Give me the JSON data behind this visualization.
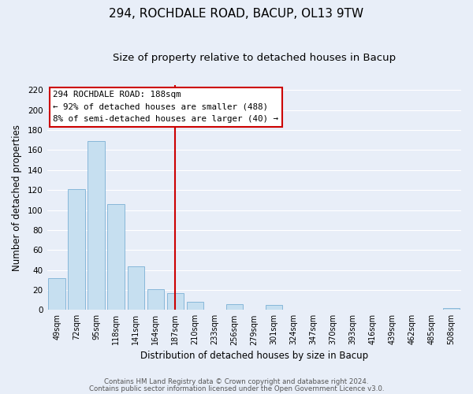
{
  "title": "294, ROCHDALE ROAD, BACUP, OL13 9TW",
  "subtitle": "Size of property relative to detached houses in Bacup",
  "xlabel": "Distribution of detached houses by size in Bacup",
  "ylabel": "Number of detached properties",
  "bar_labels": [
    "49sqm",
    "72sqm",
    "95sqm",
    "118sqm",
    "141sqm",
    "164sqm",
    "187sqm",
    "210sqm",
    "233sqm",
    "256sqm",
    "279sqm",
    "301sqm",
    "324sqm",
    "347sqm",
    "370sqm",
    "393sqm",
    "416sqm",
    "439sqm",
    "462sqm",
    "485sqm",
    "508sqm"
  ],
  "bar_values": [
    32,
    121,
    169,
    106,
    44,
    21,
    17,
    8,
    0,
    6,
    0,
    5,
    0,
    0,
    0,
    0,
    0,
    0,
    0,
    0,
    2
  ],
  "bar_color": "#c6dff0",
  "bar_edge_color": "#7ab0d4",
  "vline_x": 6,
  "vline_color": "#cc0000",
  "ylim": [
    0,
    225
  ],
  "yticks": [
    0,
    20,
    40,
    60,
    80,
    100,
    120,
    140,
    160,
    180,
    200,
    220
  ],
  "annotation_title": "294 ROCHDALE ROAD: 188sqm",
  "annotation_line1": "← 92% of detached houses are smaller (488)",
  "annotation_line2": "8% of semi-detached houses are larger (40) →",
  "annotation_box_color": "#ffffff",
  "annotation_box_edge": "#cc0000",
  "footer1": "Contains HM Land Registry data © Crown copyright and database right 2024.",
  "footer2": "Contains public sector information licensed under the Open Government Licence v3.0.",
  "background_color": "#e8eef8",
  "grid_color": "#ffffff",
  "title_fontsize": 11,
  "subtitle_fontsize": 9.5
}
